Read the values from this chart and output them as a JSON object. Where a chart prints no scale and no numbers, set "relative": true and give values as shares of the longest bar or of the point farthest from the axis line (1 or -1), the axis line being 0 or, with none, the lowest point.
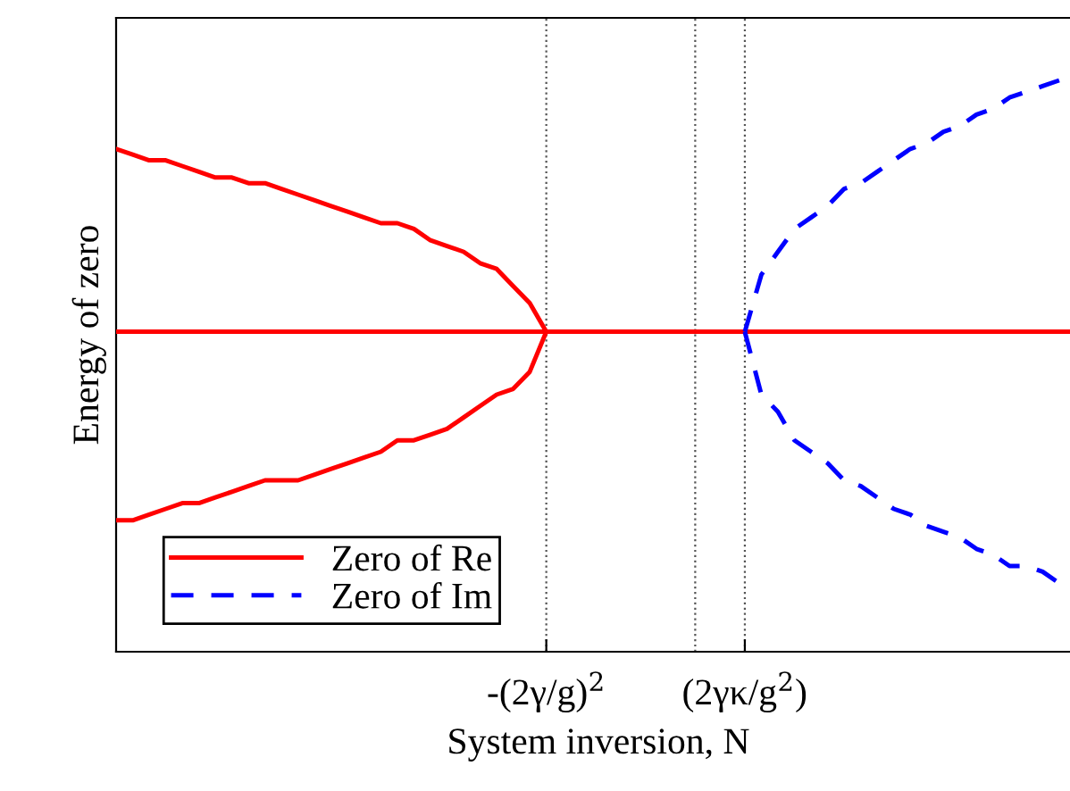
{
  "chart_data": {
    "type": "line",
    "relative": true,
    "xlabel": "System inversion, N",
    "ylabel": "Energy of zero",
    "categories": [
      null,
      null,
      null,
      null,
      null,
      null,
      null,
      null,
      null,
      null,
      null,
      null,
      null,
      null,
      null,
      null,
      null,
      null,
      null,
      null,
      null,
      null,
      null,
      null,
      null,
      null,
      "-(2γ/g)$^{2}$",
      null,
      null,
      null,
      null,
      null,
      null,
      null,
      null,
      null,
      null,
      null,
      "(2γκ/g$^{2}$)",
      null,
      null,
      null,
      null,
      null,
      null,
      null,
      null,
      null,
      null,
      null,
      null,
      null,
      null,
      null,
      null,
      null,
      null,
      null,
      null
    ],
    "series": [
      {
        "name": "Zero of Re",
        "color": "#ff0000",
        "line_style": "solid",
        "values": [
          0.88,
          0.87,
          0.86,
          0.86,
          0.85,
          0.84,
          0.83,
          0.83,
          0.82,
          0.82,
          0.81,
          0.8,
          0.79,
          0.78,
          0.77,
          0.76,
          0.75,
          0.75,
          0.74,
          0.72,
          0.71,
          0.7,
          0.68,
          0.67,
          0.64,
          0.61,
          0.56,
          null,
          null,
          null,
          null,
          null,
          null,
          null,
          null,
          null,
          null,
          null,
          null,
          null,
          null,
          null,
          null,
          null,
          null,
          null,
          null,
          null,
          null,
          null,
          null,
          null,
          null,
          null,
          null,
          null,
          null,
          null,
          null
        ]
      },
      {
        "color": "#ff0000",
        "line_style": "solid",
        "values": [
          0.23,
          0.23,
          0.24,
          0.25,
          0.26,
          0.26,
          0.27,
          0.28,
          0.29,
          0.3,
          0.3,
          0.3,
          0.31,
          0.32,
          0.33,
          0.34,
          0.35,
          0.37,
          0.37,
          0.38,
          0.39,
          0.41,
          0.43,
          0.45,
          0.46,
          0.49,
          0.56,
          null,
          null,
          null,
          null,
          null,
          null,
          null,
          null,
          null,
          null,
          null,
          null,
          null,
          null,
          null,
          null,
          null,
          null,
          null,
          null,
          null,
          null,
          null,
          null,
          null,
          null,
          null,
          null,
          null,
          null,
          null,
          null
        ]
      },
      {
        "color": "#ff0000",
        "line_style": "solid",
        "values": [
          0.56,
          0.56,
          0.56,
          0.56,
          0.56,
          0.56,
          0.56,
          0.56,
          0.56,
          0.56,
          0.56,
          0.56,
          0.56,
          0.56,
          0.56,
          0.56,
          0.56,
          0.56,
          0.56,
          0.56,
          0.56,
          0.56,
          0.56,
          0.56,
          0.56,
          0.56,
          0.56,
          0.56,
          0.56,
          0.56,
          0.56,
          0.56,
          0.56,
          0.56,
          0.56,
          0.56,
          0.56,
          0.56,
          0.56,
          0.56,
          0.56,
          0.56,
          0.56,
          0.56,
          0.56,
          0.56,
          0.56,
          0.56,
          0.56,
          0.56,
          0.56,
          0.56,
          0.56,
          0.56,
          0.56,
          0.56,
          0.56,
          0.56,
          0.56
        ]
      },
      {
        "name": "Zero of Im",
        "color": "#0000ff",
        "line_style": "dashed",
        "values": [
          null,
          null,
          null,
          null,
          null,
          null,
          null,
          null,
          null,
          null,
          null,
          null,
          null,
          null,
          null,
          null,
          null,
          null,
          null,
          null,
          null,
          null,
          null,
          null,
          null,
          null,
          null,
          null,
          null,
          null,
          null,
          null,
          null,
          null,
          null,
          null,
          null,
          null,
          0.56,
          0.66,
          0.7,
          0.74,
          0.76,
          0.78,
          0.81,
          0.82,
          0.84,
          0.86,
          0.88,
          0.89,
          0.91,
          0.92,
          0.94,
          0.95,
          0.97,
          0.98,
          0.99,
          1.0,
          null
        ]
      },
      {
        "color": "#0000ff",
        "line_style": "dashed",
        "values": [
          null,
          null,
          null,
          null,
          null,
          null,
          null,
          null,
          null,
          null,
          null,
          null,
          null,
          null,
          null,
          null,
          null,
          null,
          null,
          null,
          null,
          null,
          null,
          null,
          null,
          null,
          null,
          null,
          null,
          null,
          null,
          null,
          null,
          null,
          null,
          null,
          null,
          null,
          0.56,
          0.45,
          0.42,
          0.37,
          0.35,
          0.33,
          0.3,
          0.29,
          0.27,
          0.25,
          0.24,
          0.22,
          0.21,
          0.2,
          0.18,
          0.17,
          0.15,
          0.15,
          0.14,
          0.12,
          null
        ]
      }
    ],
    "ref_lines": [
      {
        "axis": "x",
        "color": "#555555",
        "line_style": "dotted"
      }
    ],
    "legend": "bottom left",
    "grid": "x",
    "marker": "none"
  }
}
